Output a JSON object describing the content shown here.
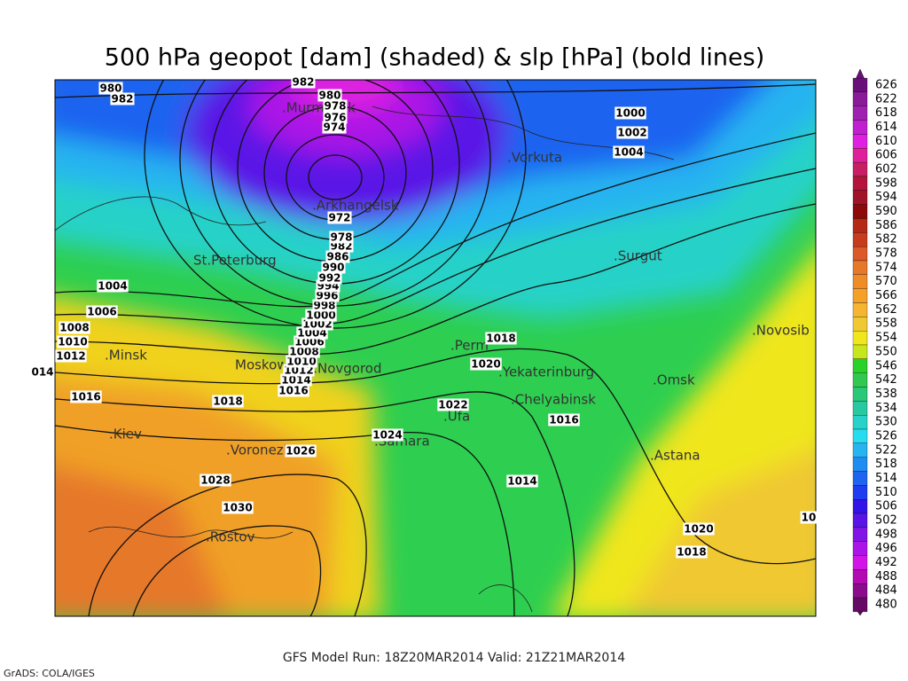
{
  "title": "500 hPa geopot [dam] (shaded) & slp [hPa] (bold lines)",
  "colorbar": {
    "levels": [
      626,
      622,
      618,
      614,
      610,
      606,
      602,
      598,
      594,
      590,
      586,
      582,
      578,
      574,
      570,
      566,
      562,
      558,
      554,
      550,
      546,
      542,
      538,
      534,
      530,
      526,
      522,
      518,
      514,
      510,
      506,
      502,
      498,
      496,
      492,
      488,
      484,
      480
    ],
    "colors": [
      "#6a0f7a",
      "#8a1a9a",
      "#a020b0",
      "#c020d0",
      "#e020e0",
      "#e0209a",
      "#c81e64",
      "#b4143c",
      "#a01428",
      "#8c0a0a",
      "#b42814",
      "#c83c1e",
      "#dc5a28",
      "#e6782a",
      "#f08c28",
      "#f5a028",
      "#f5b432",
      "#f0c832",
      "#f0e61e",
      "#c8e61e",
      "#28d228",
      "#32c850",
      "#28c878",
      "#28c8a0",
      "#28d2c8",
      "#28dcf0",
      "#28b4f0",
      "#1e8cf0",
      "#1e64f0",
      "#1e3cf0",
      "#3214e6",
      "#5a14e6",
      "#8214e6",
      "#aa14e6",
      "#d214e6",
      "#b40ab4",
      "#8c0a8c",
      "#640a64"
    ]
  },
  "cities": [
    ".Murmansk",
    ".Arkhangelsk",
    ".Vorkuta",
    "St.Peterburg",
    ".Surgut",
    ".Perm",
    ".Minsk",
    "Moskow",
    "N.Novgorod",
    ".Yekaterinburg",
    ".Chelyabinsk",
    ".Omsk",
    ".Novosib",
    ".Ufa",
    ".Kiev",
    ".Samara",
    ".Voronezh",
    ".Astana",
    ".Rostov"
  ],
  "isobar_labels": [
    "980",
    "982",
    "982",
    "980",
    "978",
    "976",
    "974",
    "972",
    "1000",
    "1002",
    "1004",
    "1004",
    "1006",
    "1008",
    "1010",
    "1012",
    "014",
    "1016",
    "1018",
    "1018",
    "1020",
    "1022",
    "1024",
    "1026",
    "1028",
    "1030",
    "1016",
    "1014",
    "1020",
    "1018",
    "10",
    "1016",
    "1014",
    "1012",
    "1010",
    "1008",
    "1006",
    "1004",
    "1002",
    "1000",
    "998",
    "996",
    "994",
    "992",
    "990",
    "986",
    "982",
    "978"
  ],
  "footer": {
    "model_run": "GFS Model Run: 18Z20MAR2014  Valid: 21Z21MAR2014",
    "credit": "GrADS: COLA/IGES"
  }
}
